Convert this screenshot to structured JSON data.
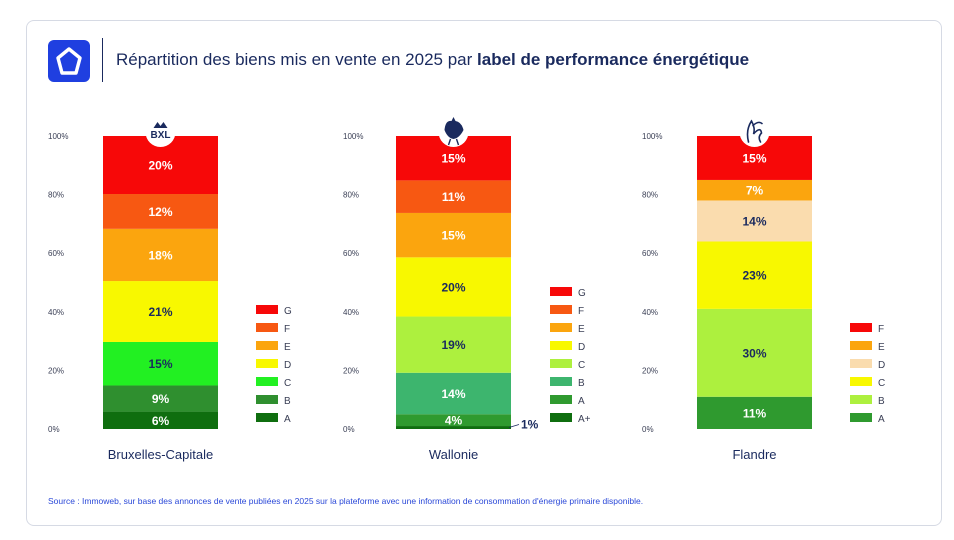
{
  "title_normal": "Répartition des biens mis en vente en 2025 par ",
  "title_bold": "label de performance énergétique",
  "source": "Source : Immoweb, sur base des annonces de vente publiées en 2025 sur la plateforme avec une information de consommation d'énergie primaire disponible.",
  "colors": {
    "A+": "#0b6b0b",
    "A": "#2e9b2e",
    "B_bxl": "#2e8b2e",
    "B": "#3db36b",
    "C_bxl": "#1fef1f",
    "C": "#adf03c",
    "D": "#f7f700",
    "E": "#fba20d",
    "F": "#f75610",
    "G": "#f70707",
    "D_light": "#fadcae"
  },
  "chart_data": [
    {
      "type": "bar",
      "stacked": true,
      "region": "Bruxelles-Capitale",
      "emblem": "BXL",
      "ylim": [
        0,
        100
      ],
      "yticks": [
        "0%",
        "20%",
        "40%",
        "60%",
        "80%",
        "100%"
      ],
      "series": [
        {
          "name": "A",
          "value": 6,
          "label": "6%",
          "color": "#0f6e0f",
          "text": "#ffffff"
        },
        {
          "name": "B",
          "value": 9,
          "label": "9%",
          "color": "#2f8f2f",
          "text": "#ffffff"
        },
        {
          "name": "C",
          "value": 15,
          "label": "15%",
          "color": "#22f022",
          "text": "#1a2a5e"
        },
        {
          "name": "D",
          "value": 21,
          "label": "21%",
          "color": "#f8f800",
          "text": "#1a2a5e"
        },
        {
          "name": "E",
          "value": 18,
          "label": "18%",
          "color": "#fba50e",
          "text": "#ffffff"
        },
        {
          "name": "F",
          "value": 12,
          "label": "12%",
          "color": "#f75812",
          "text": "#ffffff"
        },
        {
          "name": "G",
          "value": 20,
          "label": "20%",
          "color": "#f70808",
          "text": "#ffffff"
        }
      ],
      "legend": [
        "G",
        "F",
        "E",
        "D",
        "C",
        "B",
        "A"
      ]
    },
    {
      "type": "bar",
      "stacked": true,
      "region": "Wallonie",
      "emblem": "coq",
      "ylim": [
        0,
        100
      ],
      "yticks": [
        "0%",
        "20%",
        "40%",
        "60%",
        "80%",
        "100%"
      ],
      "series": [
        {
          "name": "A+",
          "value": 1,
          "label": "1%",
          "color": "#0f6e0f",
          "text": "#1a2a5e",
          "outside": true
        },
        {
          "name": "A",
          "value": 4,
          "label": "4%",
          "color": "#2f9a2f",
          "text": "#ffffff"
        },
        {
          "name": "B",
          "value": 14,
          "label": "14%",
          "color": "#3db56e",
          "text": "#ffffff"
        },
        {
          "name": "C",
          "value": 19,
          "label": "19%",
          "color": "#adf03e",
          "text": "#1a2a5e"
        },
        {
          "name": "D",
          "value": 20,
          "label": "20%",
          "color": "#f8f800",
          "text": "#1a2a5e"
        },
        {
          "name": "E",
          "value": 15,
          "label": "15%",
          "color": "#fba50e",
          "text": "#ffffff"
        },
        {
          "name": "F",
          "value": 11,
          "label": "11%",
          "color": "#f75812",
          "text": "#ffffff"
        },
        {
          "name": "G",
          "value": 15,
          "label": "15%",
          "color": "#f70808",
          "text": "#ffffff"
        }
      ],
      "legend": [
        "G",
        "F",
        "E",
        "D",
        "C",
        "B",
        "A",
        "A+"
      ]
    },
    {
      "type": "bar",
      "stacked": true,
      "region": "Flandre",
      "emblem": "lion",
      "ylim": [
        0,
        100
      ],
      "yticks": [
        "0%",
        "20%",
        "40%",
        "60%",
        "80%",
        "100%"
      ],
      "series": [
        {
          "name": "A",
          "value": 11,
          "label": "11%",
          "color": "#2f9a2f",
          "text": "#ffffff"
        },
        {
          "name": "B",
          "value": 30,
          "label": "30%",
          "color": "#adf03e",
          "text": "#1a2a5e"
        },
        {
          "name": "C",
          "value": 23,
          "label": "23%",
          "color": "#f8f800",
          "text": "#1a2a5e"
        },
        {
          "name": "D",
          "value": 14,
          "label": "14%",
          "color": "#fadcae",
          "text": "#1a2a5e"
        },
        {
          "name": "E",
          "value": 7,
          "label": "7%",
          "color": "#fba50e",
          "text": "#ffffff"
        },
        {
          "name": "F",
          "value": 15,
          "label": "15%",
          "color": "#f70808",
          "text": "#ffffff"
        }
      ],
      "legend": [
        "F",
        "E",
        "D",
        "C",
        "B",
        "A"
      ]
    }
  ]
}
